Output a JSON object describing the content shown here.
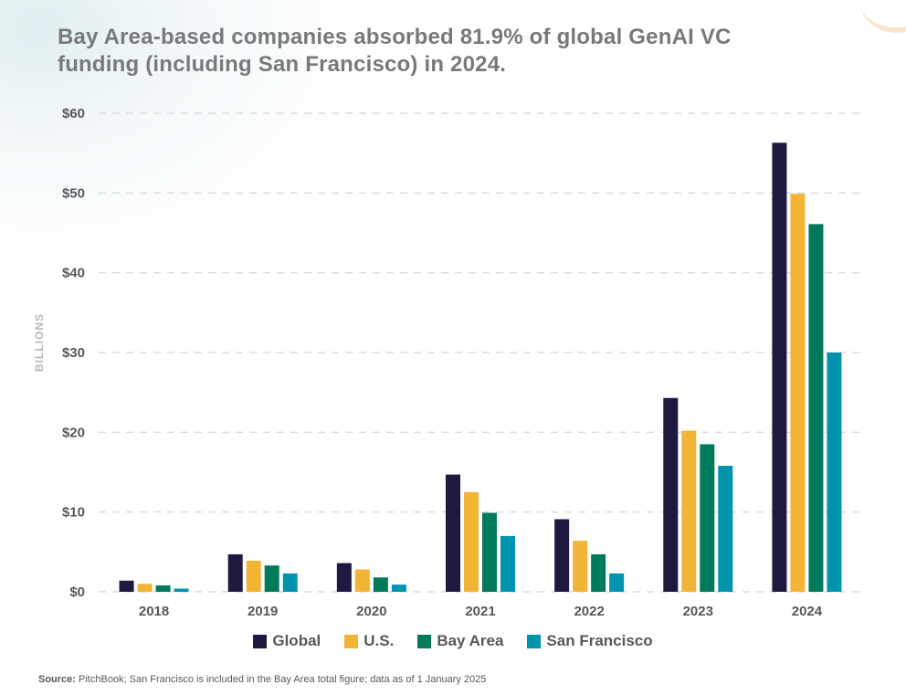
{
  "title": "Bay Area-based companies absorbed 81.9% of global GenAI VC funding (including San Francisco) in 2024.",
  "source": {
    "label": "Source:",
    "text": " PitchBook; San Francisco is included in the Bay Area total figure; data as of 1 January 2025"
  },
  "chart_data": {
    "type": "bar",
    "title": "Bay Area-based companies absorbed 81.9% of global GenAI VC funding (including San Francisco) in 2024.",
    "xlabel": "",
    "ylabel": "BILLIONS",
    "ylim": [
      0,
      60
    ],
    "yticks": [
      0,
      10,
      20,
      30,
      40,
      50,
      60
    ],
    "ytick_labels": [
      "$0",
      "$10",
      "$20",
      "$30",
      "$40",
      "$50",
      "$60"
    ],
    "grid": "horizontal dashed",
    "legend_position": "bottom-center",
    "categories": [
      "2018",
      "2019",
      "2020",
      "2021",
      "2022",
      "2023",
      "2024"
    ],
    "series": [
      {
        "name": "Global",
        "color": "#1f1940",
        "values": [
          1.4,
          4.7,
          3.6,
          14.7,
          9.1,
          24.3,
          56.3
        ]
      },
      {
        "name": "U.S.",
        "color": "#f1b434",
        "values": [
          1.0,
          3.9,
          2.8,
          12.5,
          6.4,
          20.2,
          49.9
        ]
      },
      {
        "name": "Bay Area",
        "color": "#007a5a",
        "values": [
          0.8,
          3.3,
          1.8,
          9.9,
          4.7,
          18.5,
          46.1
        ]
      },
      {
        "name": "San Francisco",
        "color": "#0093ae",
        "values": [
          0.4,
          2.3,
          0.9,
          7.0,
          2.3,
          15.8,
          30.0
        ]
      }
    ]
  }
}
